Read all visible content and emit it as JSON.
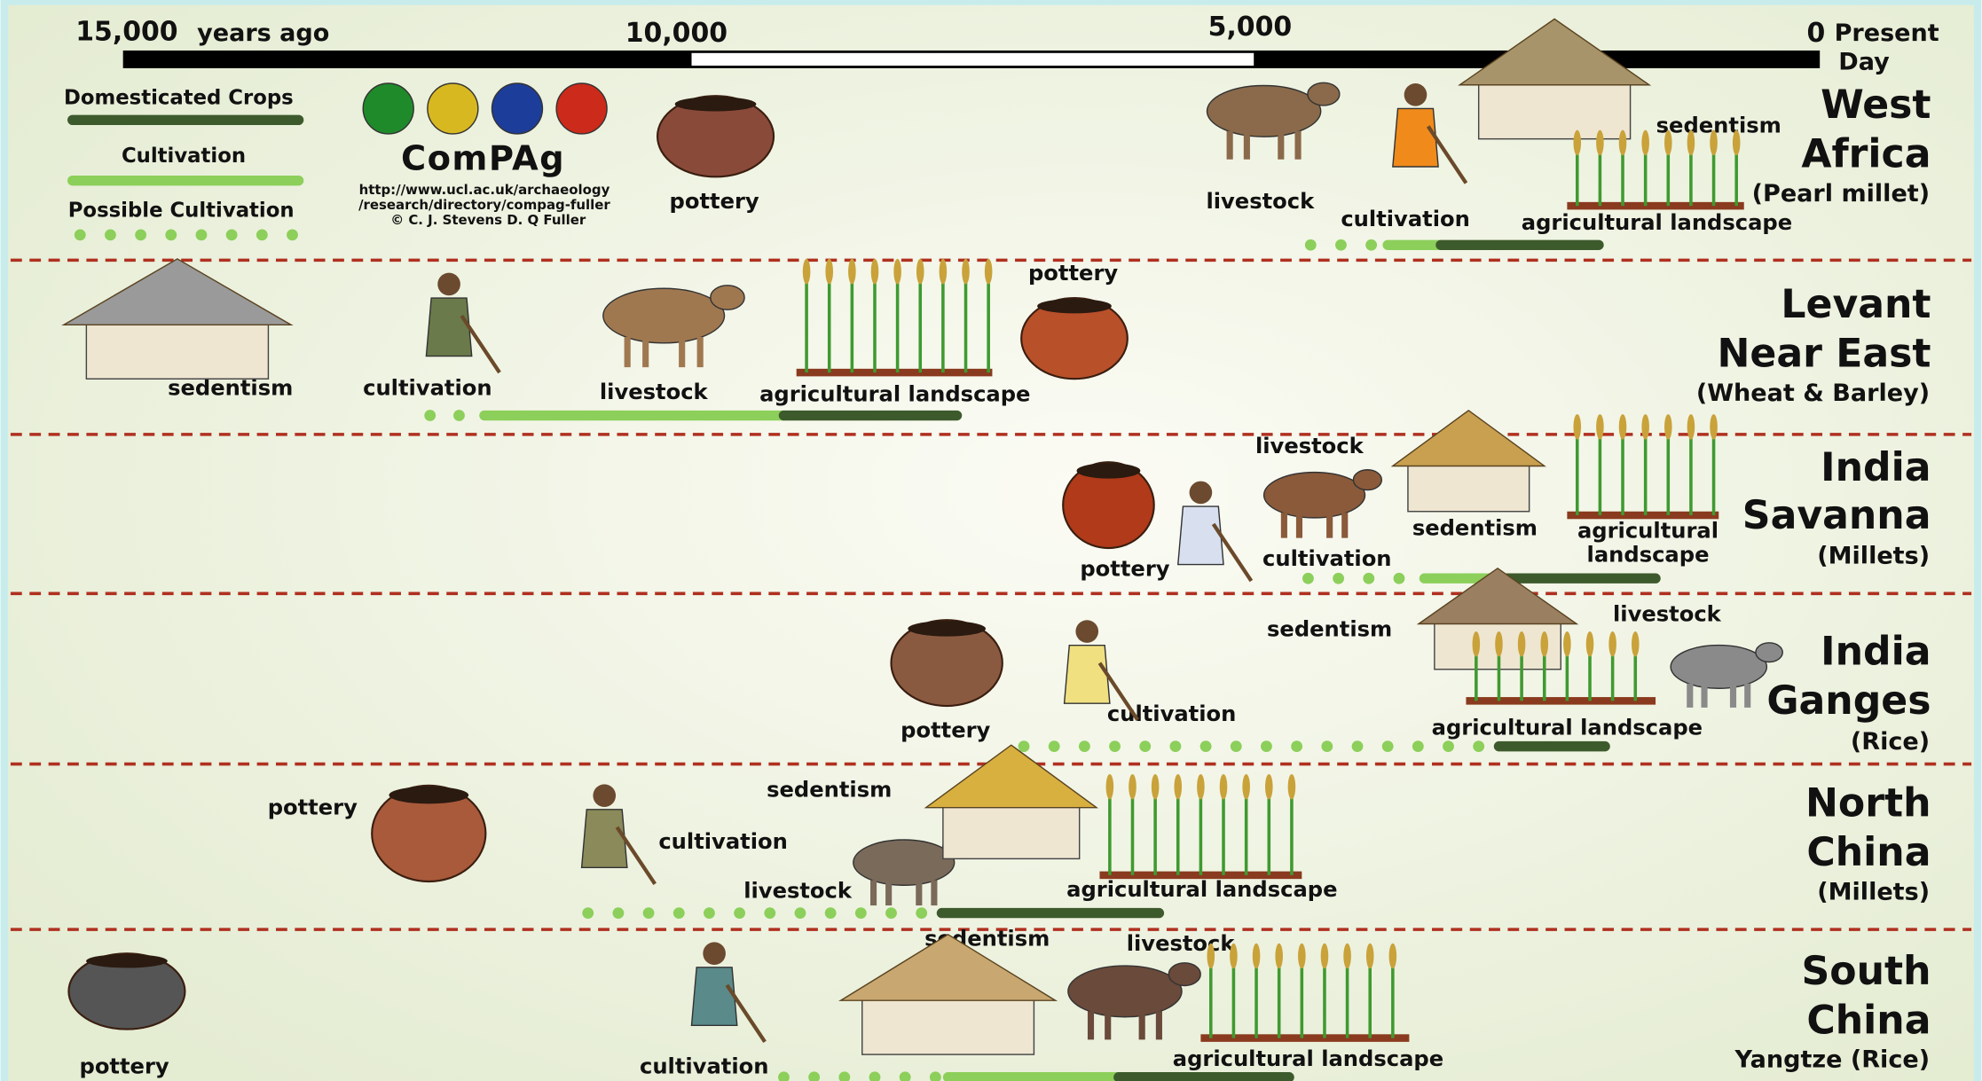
{
  "timeline": {
    "ticks": [
      {
        "number": "15,000",
        "unit": "years ago"
      },
      {
        "number": "10,000"
      },
      {
        "number": "5,000"
      },
      {
        "number": "0",
        "unit_lines": [
          "Present",
          "Day"
        ]
      }
    ]
  },
  "legend": {
    "items": [
      "Domesticated Crops",
      "Cultivation",
      "Possible Cultivation"
    ]
  },
  "logo": {
    "title": "ComPAg",
    "url_lines": [
      "http://www.ucl.ac.uk/archaeology",
      "/research/directory/compag-fuller"
    ],
    "credit": "© C. J. Stevens D. Q Fuller"
  },
  "regions": [
    {
      "name_lines": [
        "West",
        "Africa"
      ],
      "crop": "(Pearl millet)",
      "labels": [
        "pottery",
        "livestock",
        "cultivation",
        "agricultural landscape",
        "sedentism"
      ]
    },
    {
      "name_lines": [
        "Levant",
        "Near East"
      ],
      "crop": "(Wheat & Barley)",
      "labels": [
        "sedentism",
        "cultivation",
        "livestock",
        "agricultural landscape",
        "pottery"
      ]
    },
    {
      "name_lines": [
        "India",
        "Savanna"
      ],
      "crop": "(Millets)",
      "labels": [
        "livestock",
        "sedentism",
        "agricultural",
        "landscape",
        "pottery",
        "cultivation"
      ]
    },
    {
      "name_lines": [
        "India",
        "Ganges"
      ],
      "crop": "(Rice)",
      "labels": [
        "sedentism",
        "livestock",
        "pottery",
        "cultivation",
        "agricultural landscape"
      ]
    },
    {
      "name_lines": [
        "North",
        "China"
      ],
      "crop": "(Millets)",
      "labels": [
        "pottery",
        "sedentism",
        "cultivation",
        "livestock",
        "agricultural landscape"
      ]
    },
    {
      "name_lines": [
        "South",
        "China"
      ],
      "crop": "Yangtze (Rice)",
      "labels": [
        "pottery",
        "cultivation",
        "sedentism",
        "livestock",
        "agricultural landscape"
      ]
    }
  ]
}
